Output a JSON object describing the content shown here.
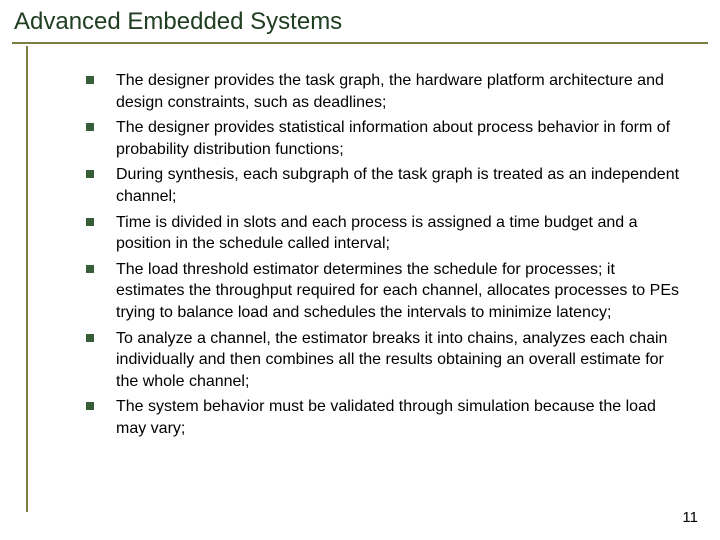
{
  "title": "Advanced Embedded Systems",
  "title_color": "#203e22",
  "title_fontsize": 24,
  "underline_color": "#7b7b44",
  "left_rule_color": "#7b7b44",
  "bullet_square_color": "#365f39",
  "body_fontsize": 16,
  "body_color": "#000000",
  "background_color": "#ffffff",
  "page_number": "11",
  "bullets": [
    "The designer provides the task graph, the hardware platform architecture and design constraints, such as deadlines;",
    "The designer provides statistical information about process behavior in form of probability distribution functions;",
    "During synthesis, each subgraph of the task graph is treated as an independent channel;",
    "Time is divided in slots and each process is assigned a time budget and a position in the schedule called interval;",
    "The load threshold estimator determines the schedule for processes; it estimates the throughput required for each channel, allocates processes to PEs trying to balance load and schedules the intervals to minimize latency;",
    "To analyze a channel, the estimator breaks it into chains, analyzes each chain individually and then combines all the results obtaining an overall estimate for the whole channel;",
    "The system behavior must be validated through simulation because the load may vary;"
  ]
}
